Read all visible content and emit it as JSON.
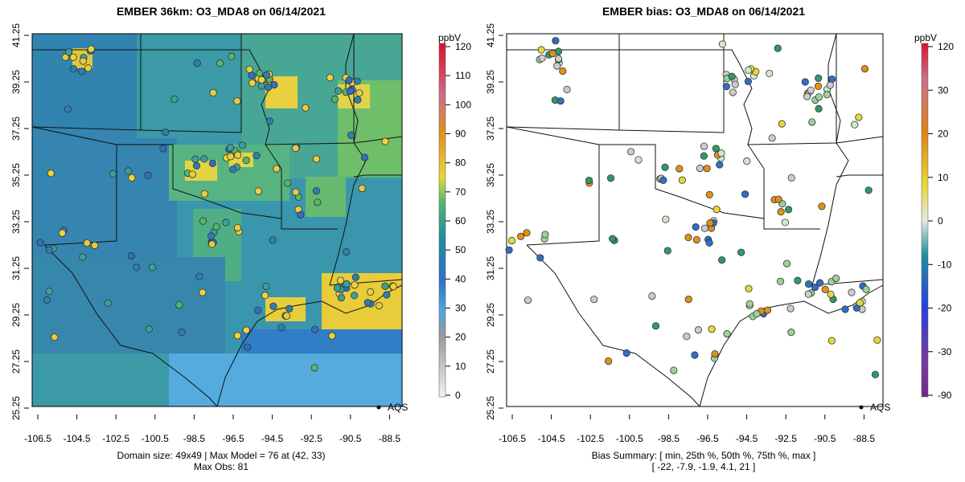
{
  "left_panel": {
    "title": "EMBER 36km: O3_MDA8 on 06/14/2021",
    "footer_line1": "Domain size: 49x49 | Max Model = 76 at (42, 33)",
    "footer_line2": "Max Obs: 81",
    "legend_point_label": "AQS",
    "colorbar_unit": "ppbV",
    "colorbar_ticks": [
      "0",
      "10",
      "20",
      "30",
      "40",
      "50",
      "60",
      "70",
      "80",
      "90",
      "100",
      "110",
      "120"
    ]
  },
  "right_panel": {
    "title": "EMBER bias: O3_MDA8 on 06/14/2021",
    "footer_line1": "Bias Summary: [ min, 25th %, 50th %, 75th %, max ]",
    "footer_line2": "[ -22,   -7.9,   -1.9,   4.1,   21 ]",
    "legend_point_label": "AQS",
    "colorbar_unit": "ppbV",
    "colorbar_ticks": [
      "-90",
      "-30",
      "-20",
      "-10",
      "0",
      "10",
      "20",
      "30",
      "120"
    ]
  },
  "axes": {
    "x_ticks": [
      "-106.5",
      "-104.5",
      "-102.5",
      "-100.5",
      "-98.5",
      "-96.5",
      "-94.5",
      "-92.5",
      "-90.5",
      "-88.5"
    ],
    "y_ticks": [
      "25.25",
      "27.25",
      "29.25",
      "31.25",
      "33.25",
      "35.25",
      "37.25",
      "39.25",
      "41.25"
    ]
  },
  "colors": {
    "gulf_water": "#55aade",
    "model_low": "#2a80b4",
    "model_mid": "#3ba19a",
    "model_high": "#f0d23a",
    "bias_positive": "#e29018",
    "bias_negative": "#2e9a6a"
  }
}
